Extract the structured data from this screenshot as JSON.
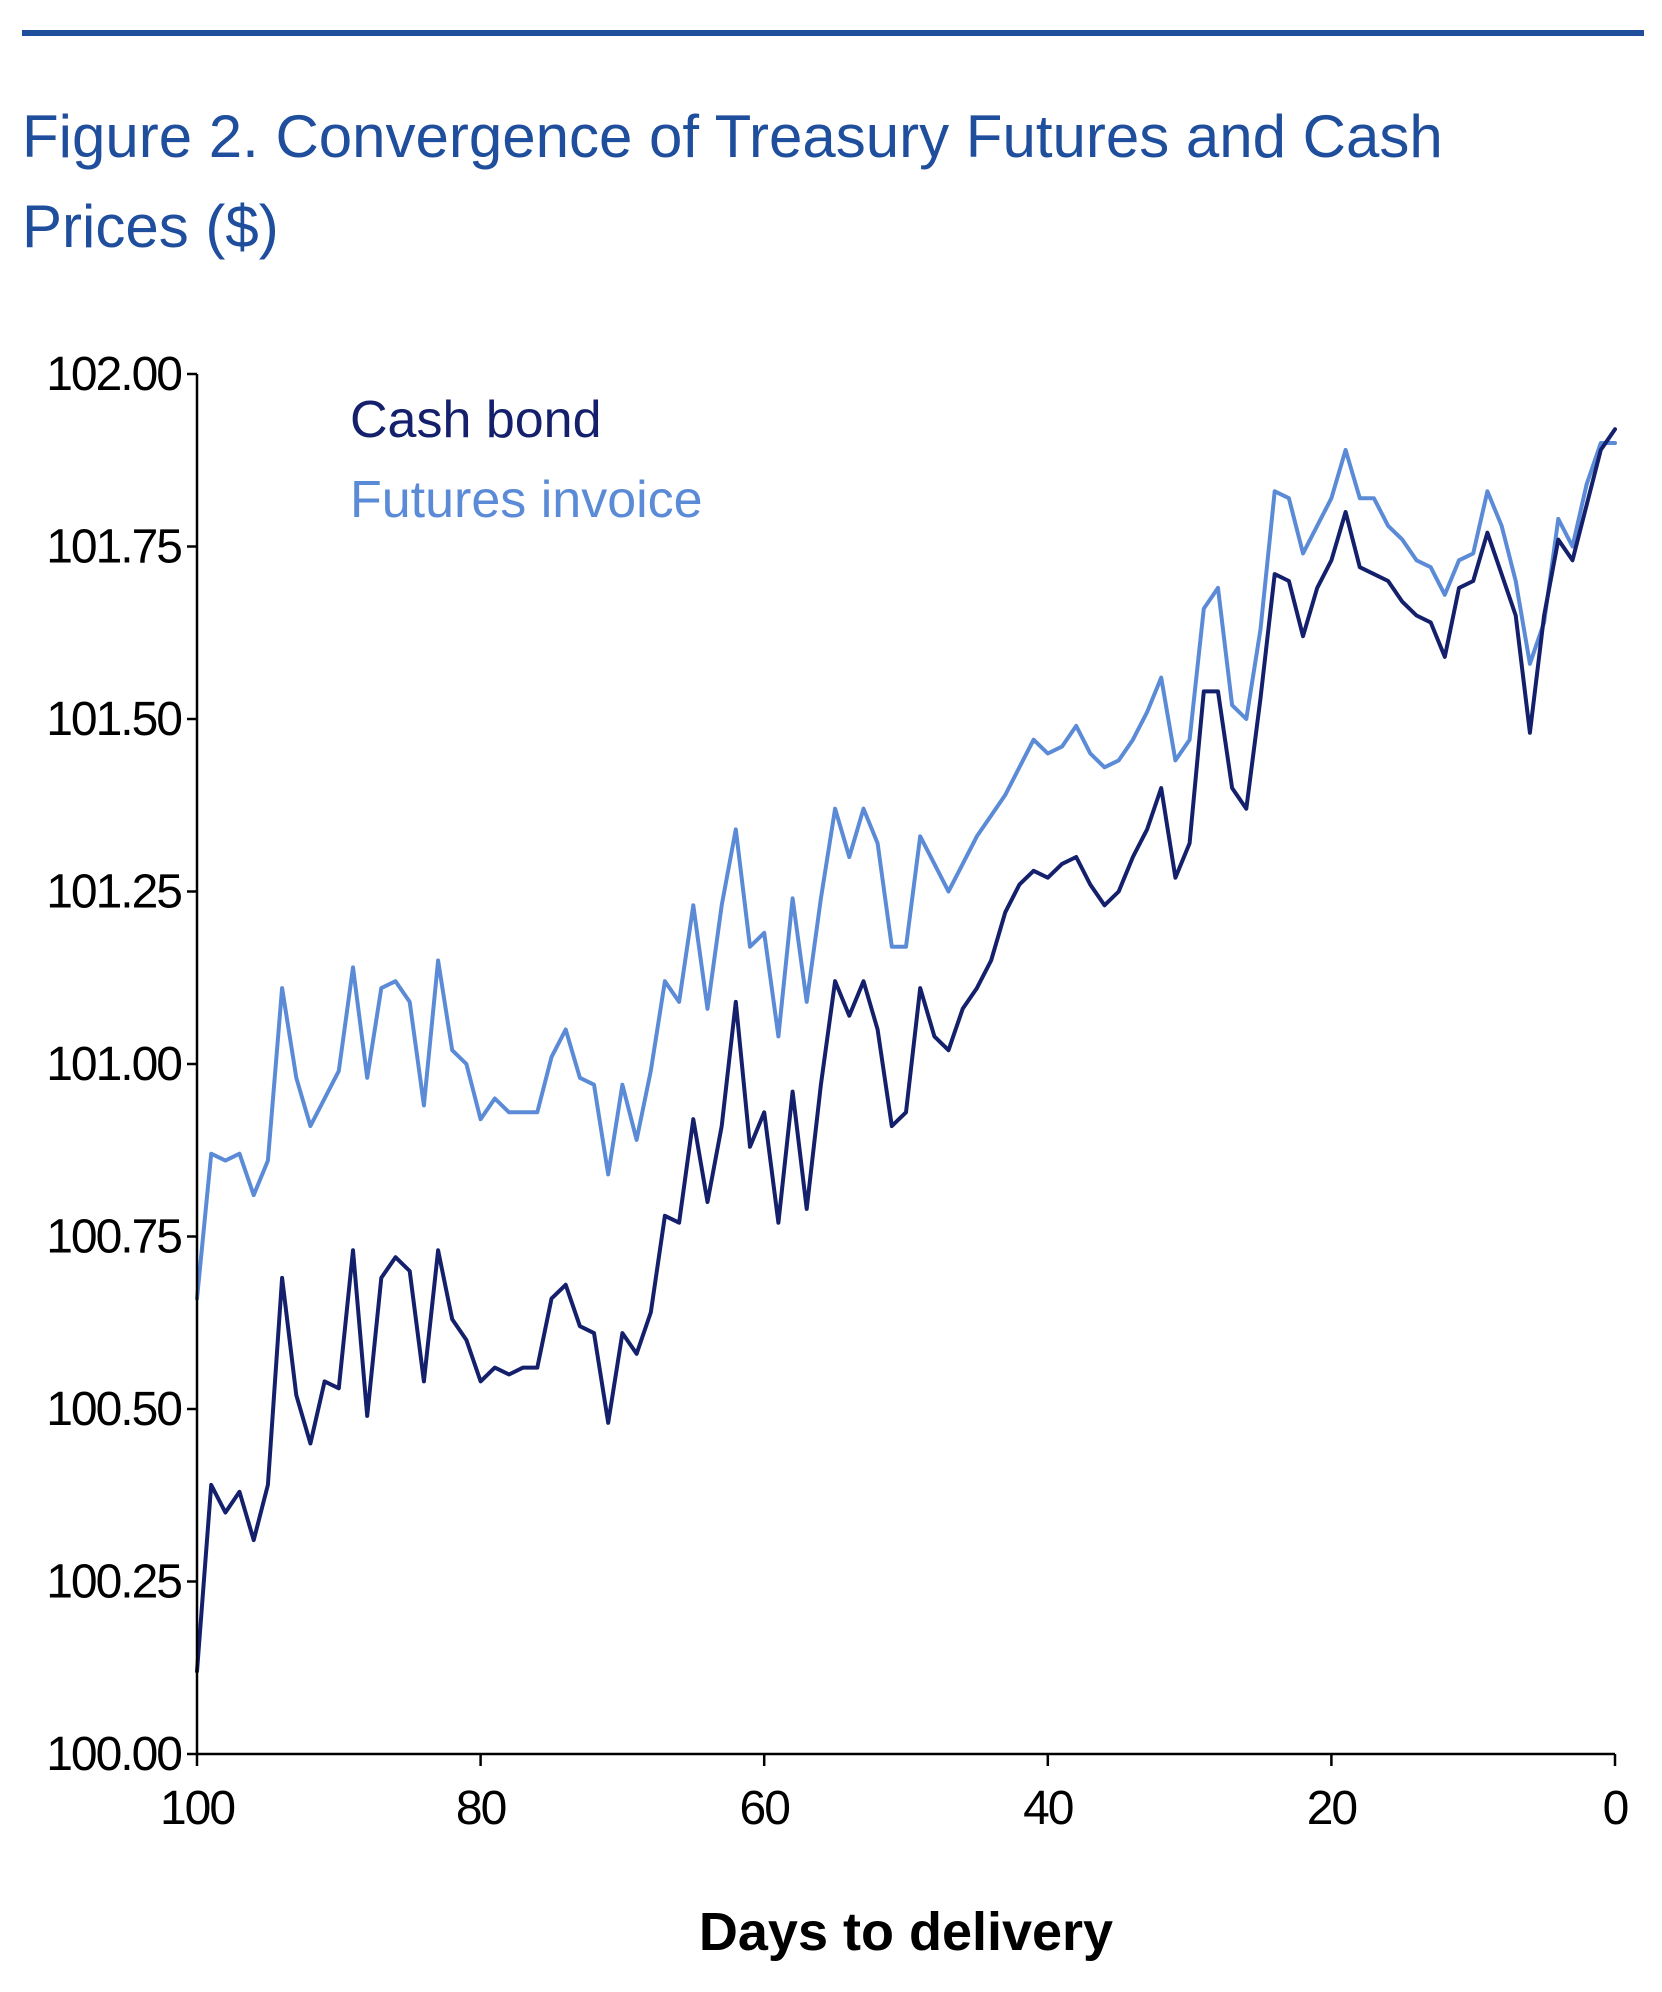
{
  "header": {
    "title": "Figure 2. Convergence of Treasury Futures and Cash Prices ($)"
  },
  "colors": {
    "accent": "#1f4e9c",
    "cash_bond": "#14206b",
    "futures_invoice": "#5b8bd6"
  },
  "chart_data": {
    "type": "line",
    "title": "Figure 2. Convergence of Treasury Futures and Cash Prices ($)",
    "xlabel": "Days to delivery",
    "ylabel": "",
    "xlim": [
      100,
      0
    ],
    "ylim": [
      100.0,
      102.0
    ],
    "x_ticks": [
      "100",
      "80",
      "60",
      "40",
      "20",
      "0"
    ],
    "y_ticks": [
      "102.00",
      "101.75",
      "101.50",
      "101.25",
      "101.00",
      "100.75",
      "100.50",
      "100.25",
      "100.00"
    ],
    "legend_position": "top-left",
    "grid": false,
    "x": [
      100,
      99,
      98,
      97,
      96,
      95,
      94,
      93,
      92,
      91,
      90,
      89,
      88,
      87,
      86,
      85,
      84,
      83,
      82,
      81,
      80,
      79,
      78,
      77,
      76,
      75,
      74,
      73,
      72,
      71,
      70,
      69,
      68,
      67,
      66,
      65,
      64,
      63,
      62,
      61,
      60,
      59,
      58,
      57,
      56,
      55,
      54,
      53,
      52,
      51,
      50,
      49,
      48,
      47,
      46,
      45,
      44,
      43,
      42,
      41,
      40,
      39,
      38,
      37,
      36,
      35,
      34,
      33,
      32,
      31,
      30,
      29,
      28,
      27,
      26,
      25,
      24,
      23,
      22,
      21,
      20,
      19,
      18,
      17,
      16,
      15,
      14,
      13,
      12,
      11,
      10,
      9,
      8,
      7,
      6,
      5,
      4,
      3,
      2,
      1,
      0
    ],
    "series": [
      {
        "name": "Cash bond",
        "color": "#14206b",
        "values": [
          100.12,
          100.39,
          100.35,
          100.38,
          100.31,
          100.39,
          100.69,
          100.52,
          100.45,
          100.54,
          100.53,
          100.73,
          100.49,
          100.69,
          100.72,
          100.7,
          100.54,
          100.73,
          100.63,
          100.6,
          100.54,
          100.56,
          100.55,
          100.56,
          100.56,
          100.66,
          100.68,
          100.62,
          100.61,
          100.48,
          100.61,
          100.58,
          100.64,
          100.78,
          100.77,
          100.92,
          100.8,
          100.91,
          101.09,
          100.88,
          100.93,
          100.77,
          100.96,
          100.79,
          100.97,
          101.12,
          101.07,
          101.12,
          101.05,
          100.91,
          100.93,
          101.11,
          101.04,
          101.02,
          101.08,
          101.11,
          101.15,
          101.22,
          101.26,
          101.28,
          101.27,
          101.29,
          101.3,
          101.26,
          101.23,
          101.25,
          101.3,
          101.34,
          101.4,
          101.27,
          101.32,
          101.54,
          101.54,
          101.4,
          101.37,
          101.53,
          101.71,
          101.7,
          101.62,
          101.69,
          101.73,
          101.8,
          101.72,
          101.71,
          101.7,
          101.67,
          101.65,
          101.64,
          101.59,
          101.69,
          101.7,
          101.77,
          101.71,
          101.65,
          101.48,
          101.65,
          101.76,
          101.73,
          101.81,
          101.89,
          101.92
        ]
      },
      {
        "name": "Futures invoice",
        "color": "#5b8bd6",
        "values": [
          100.66,
          100.87,
          100.86,
          100.87,
          100.81,
          100.86,
          101.11,
          100.98,
          100.91,
          100.95,
          100.99,
          101.14,
          100.98,
          101.11,
          101.12,
          101.09,
          100.94,
          101.15,
          101.02,
          101.0,
          100.92,
          100.95,
          100.93,
          100.93,
          100.93,
          101.01,
          101.05,
          100.98,
          100.97,
          100.84,
          100.97,
          100.89,
          100.99,
          101.12,
          101.09,
          101.23,
          101.08,
          101.23,
          101.34,
          101.17,
          101.19,
          101.04,
          101.24,
          101.09,
          101.24,
          101.37,
          101.3,
          101.37,
          101.32,
          101.17,
          101.17,
          101.33,
          101.29,
          101.25,
          101.29,
          101.33,
          101.36,
          101.39,
          101.43,
          101.47,
          101.45,
          101.46,
          101.49,
          101.45,
          101.43,
          101.44,
          101.47,
          101.51,
          101.56,
          101.44,
          101.47,
          101.66,
          101.69,
          101.52,
          101.5,
          101.63,
          101.83,
          101.82,
          101.74,
          101.78,
          101.82,
          101.89,
          101.82,
          101.82,
          101.78,
          101.76,
          101.73,
          101.72,
          101.68,
          101.73,
          101.74,
          101.83,
          101.78,
          101.7,
          101.58,
          101.64,
          101.79,
          101.75,
          101.84,
          101.9,
          101.9
        ]
      }
    ]
  }
}
